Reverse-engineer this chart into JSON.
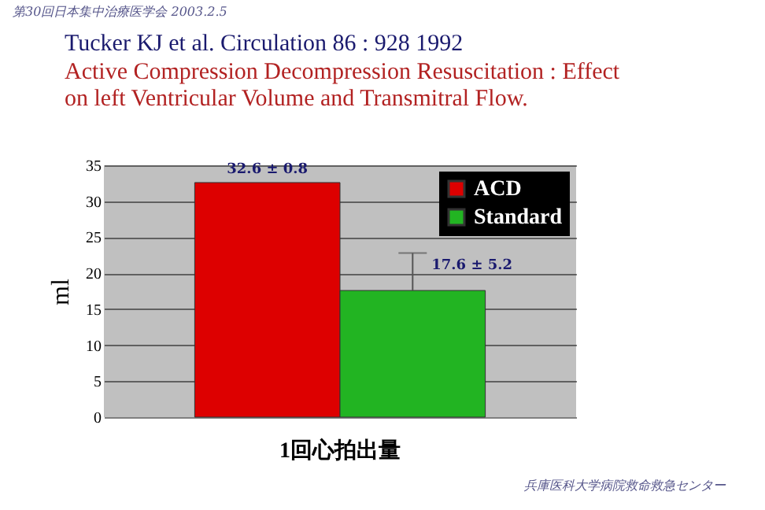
{
  "chart_data": {
    "type": "bar",
    "title": "Tucker KJ et al.                 Circulation 86 : 928  1992",
    "subtitle": "Active Compression Decompression Resuscitation : Effect on left Ventricular Volume and Transmitral Flow.",
    "categories": [
      "1回心拍出量"
    ],
    "series": [
      {
        "name": "ACD",
        "color": "#dd0000",
        "values": [
          32.6
        ],
        "value_labels": [
          "32.6 ± 0.8"
        ],
        "errors": [
          null
        ]
      },
      {
        "name": "Standard",
        "color": "#22b422",
        "values": [
          17.6
        ],
        "value_labels": [
          "17.6 ± 5.2"
        ],
        "errors": [
          [
            17.6,
            22.8
          ]
        ]
      }
    ],
    "ylabel": "ml",
    "ylim": [
      0,
      35
    ],
    "yticks": [
      0,
      5,
      10,
      15,
      20,
      25,
      30,
      35
    ],
    "grid": "y",
    "legend": "top right",
    "annotations": [
      "第30回日本集中治療医学会  2003.2.5",
      "兵庫医科大学病院救命救急センター"
    ]
  }
}
